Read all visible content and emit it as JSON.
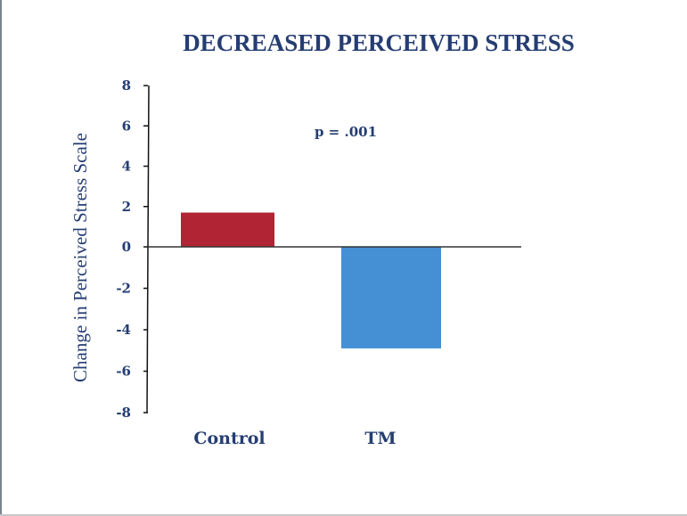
{
  "chart_data": {
    "type": "bar",
    "title": "DECREASED PERCEIVED STRESS",
    "xlabel": "",
    "ylabel": "Change in Perceived Stress Scale",
    "categories": [
      "Control",
      "TM"
    ],
    "values": [
      1.7,
      -4.9
    ],
    "colors": [
      "#b02434",
      "#4590d4"
    ],
    "ylim": [
      -8,
      8
    ],
    "yticks": [
      8,
      6,
      4,
      2,
      0,
      -2,
      -4,
      -6,
      -8
    ],
    "ytick_labels": [
      "8",
      "6",
      "4",
      "2",
      "0",
      "-2",
      "-4",
      "-6",
      "-8"
    ],
    "annotation": "p = .001",
    "grid": false
  }
}
